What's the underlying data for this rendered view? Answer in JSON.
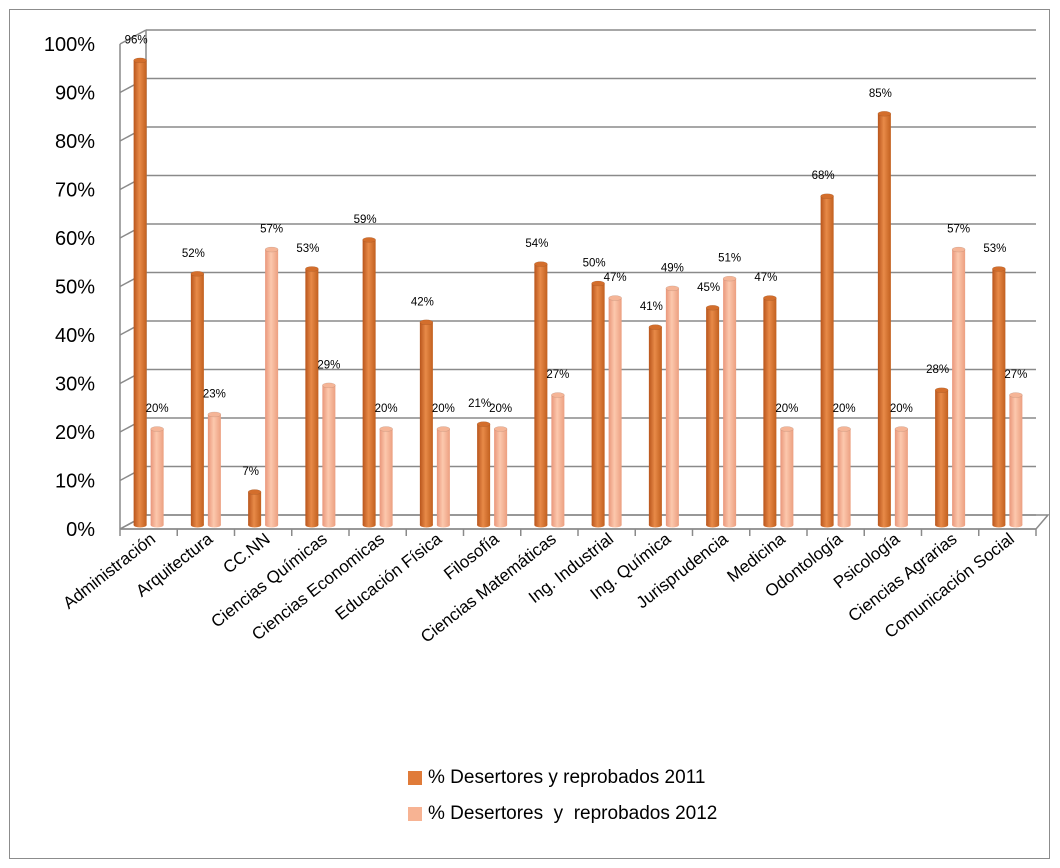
{
  "chart_data": {
    "type": "bar",
    "categories": [
      "Administración",
      "Arquitectura",
      "CC.NN",
      "Ciencias Químicas",
      "Ciencias Economicas",
      "Educación Física",
      "Filosofía",
      "Ciencias Matemáticas",
      "Ing. Industrial",
      "Ing. Química",
      "Jurisprudencia",
      "Medicina",
      "Odontología",
      "Psicología",
      "Ciencias Agrarias",
      "Comunicación Social"
    ],
    "series": [
      {
        "name": "% Desertores y reprobados 2011",
        "color": "#e07b39",
        "values": [
          96,
          52,
          7,
          53,
          59,
          42,
          21,
          54,
          50,
          41,
          45,
          47,
          68,
          85,
          28,
          53
        ]
      },
      {
        "name": "% Desertores  y  reprobados 2012",
        "color": "#f7b393",
        "values": [
          20,
          23,
          57,
          29,
          20,
          20,
          20,
          27,
          47,
          49,
          51,
          20,
          20,
          20,
          57,
          27
        ]
      }
    ],
    "ylim": [
      0,
      100
    ],
    "yticks": [
      "0%",
      "10%",
      "20%",
      "30%",
      "40%",
      "50%",
      "60%",
      "70%",
      "80%",
      "90%",
      "100%"
    ],
    "data_labels": [
      [
        "96%",
        "52%",
        "7%",
        "53%",
        "59%",
        "42%",
        "21%",
        "54%",
        "50%",
        "41%",
        "45%",
        "47%",
        "68%",
        "85%",
        "28%",
        "53%"
      ],
      [
        "20%",
        "23%",
        "57%",
        "29%",
        "20%",
        "20%",
        "20%",
        "27%",
        "47%",
        "49%",
        "51%",
        "20%",
        "20%",
        "20%",
        "57%",
        "27%"
      ]
    ],
    "grid": true,
    "legend_position": "bottom",
    "style": "3d"
  }
}
